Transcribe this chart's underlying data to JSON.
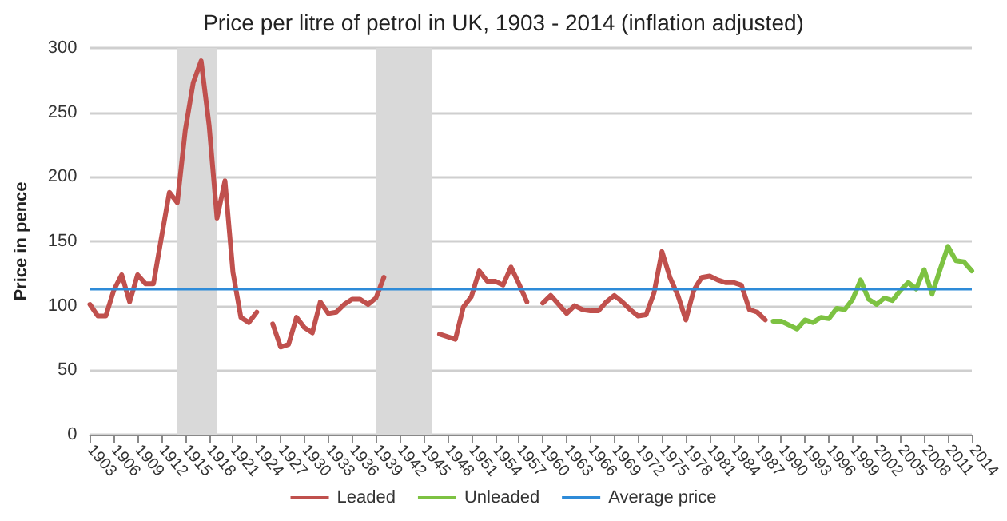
{
  "chart_data": {
    "type": "line",
    "title": "Price per litre of petrol in UK, 1903 - 2014 (inflation adjusted)",
    "ylabel": "Price in pence",
    "xlim": [
      1903,
      2014
    ],
    "xticks": [
      1903,
      1906,
      1909,
      1912,
      1915,
      1918,
      1921,
      1924,
      1927,
      1930,
      1933,
      1936,
      1939,
      1942,
      1945,
      1948,
      1951,
      1954,
      1957,
      1960,
      1963,
      1966,
      1969,
      1972,
      1975,
      1978,
      1981,
      1984,
      1987,
      1990,
      1993,
      1996,
      1999,
      2002,
      2005,
      2008,
      2011,
      2014
    ],
    "ylim": [
      0,
      300
    ],
    "yticks": [
      0,
      50,
      100,
      150,
      200,
      250,
      300
    ],
    "grid": "y",
    "legend": "bottom",
    "marker": "none",
    "line_style": "solid",
    "series": [
      {
        "name": "Leaded",
        "color": "#c0504d",
        "x": [
          1903,
          1904,
          1905,
          1906,
          1907,
          1908,
          1909,
          1910,
          1911,
          1912,
          1913,
          1914,
          1915,
          1916,
          1917,
          1918,
          1919,
          1920,
          1921,
          1922,
          1923,
          1924,
          1925,
          1926,
          1927,
          1928,
          1929,
          1930,
          1931,
          1932,
          1933,
          1934,
          1935,
          1936,
          1937,
          1938,
          1939,
          1940,
          1941,
          1942,
          1943,
          1944,
          1945,
          1946,
          1947,
          1948,
          1949,
          1950,
          1951,
          1952,
          1953,
          1954,
          1955,
          1956,
          1957,
          1958,
          1959,
          1960,
          1961,
          1962,
          1963,
          1964,
          1965,
          1966,
          1967,
          1968,
          1969,
          1970,
          1971,
          1972,
          1973,
          1974,
          1975,
          1976,
          1977,
          1978,
          1979,
          1980,
          1981,
          1982,
          1983,
          1984,
          1985,
          1986,
          1987,
          1988
        ],
        "values": [
          101,
          92,
          92,
          112,
          124,
          103,
          124,
          117,
          117,
          153,
          188,
          180,
          236,
          273,
          290,
          240,
          168,
          197,
          126,
          91,
          87,
          95,
          null,
          86,
          68,
          70,
          91,
          83,
          79,
          103,
          94,
          95,
          101,
          105,
          105,
          101,
          106,
          122,
          null,
          null,
          null,
          null,
          null,
          null,
          78,
          76,
          74,
          99,
          107,
          127,
          119,
          119,
          116,
          130,
          117,
          103,
          null,
          102,
          108,
          101,
          94,
          100,
          97,
          96,
          96,
          103,
          108,
          103,
          97,
          92,
          93,
          110,
          142,
          122,
          108,
          89,
          112,
          122,
          123,
          120,
          118,
          118,
          116,
          97,
          95,
          89
        ]
      },
      {
        "name": "Unleaded",
        "color": "#7dc242",
        "x": [
          1989,
          1990,
          1991,
          1992,
          1993,
          1994,
          1995,
          1996,
          1997,
          1998,
          1999,
          2000,
          2001,
          2002,
          2003,
          2004,
          2005,
          2006,
          2007,
          2008,
          2009,
          2010,
          2011,
          2012,
          2013,
          2014
        ],
        "values": [
          88,
          88,
          85,
          82,
          89,
          87,
          91,
          90,
          98,
          97,
          105,
          120,
          105,
          101,
          106,
          104,
          112,
          118,
          113,
          128,
          109,
          128,
          146,
          135,
          134,
          127
        ]
      }
    ],
    "ref_lines": [
      {
        "axis": "y",
        "value": 113,
        "label": "Average price",
        "color": "#2e8bd8"
      }
    ],
    "bands": [
      {
        "axis": "x",
        "from": 1914,
        "to": 1919,
        "color": "#d9d9d9"
      },
      {
        "axis": "x",
        "from": 1939,
        "to": 1946,
        "color": "#d9d9d9"
      }
    ]
  }
}
